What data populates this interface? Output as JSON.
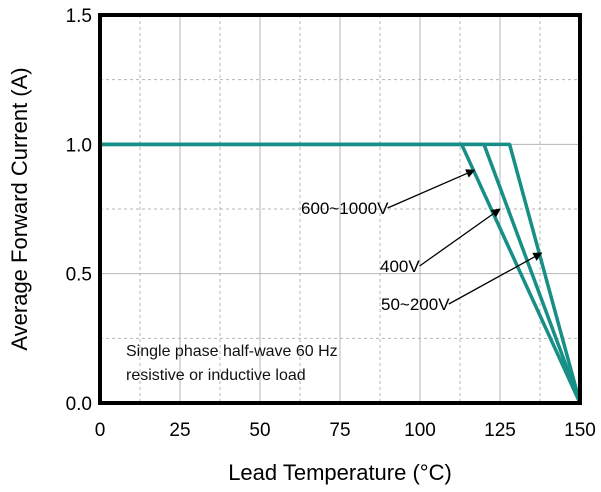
{
  "chart_data": {
    "type": "line",
    "xlabel": "Lead Temperature (°C)",
    "ylabel": "Average Forward Current  (A)",
    "xlim": [
      0,
      150
    ],
    "ylim": [
      0,
      1.5
    ],
    "x_ticks": [
      0,
      25,
      50,
      75,
      100,
      125,
      150
    ],
    "y_ticks": [
      0.0,
      0.5,
      1.0,
      1.5
    ],
    "x_tick_labels": [
      "0",
      "25",
      "50",
      "75",
      "100",
      "125",
      "150"
    ],
    "y_tick_labels": [
      "0.0",
      "0.5",
      "1.0",
      "1.5"
    ],
    "grid": true,
    "line_color": "#178f86",
    "series": [
      {
        "name": "600~1000V",
        "x": [
          0,
          113,
          150
        ],
        "y": [
          1.0,
          1.0,
          0.0
        ]
      },
      {
        "name": "400V",
        "x": [
          0,
          120,
          150
        ],
        "y": [
          1.0,
          1.0,
          0.0
        ]
      },
      {
        "name": "50~200V",
        "x": [
          0,
          128,
          150
        ],
        "y": [
          1.0,
          1.0,
          0.0
        ]
      }
    ],
    "annotations": [
      {
        "text": "600~1000V",
        "series": 0,
        "target": [
          117,
          0.9
        ]
      },
      {
        "text": "400V",
        "series": 1,
        "target": [
          125,
          0.75
        ]
      },
      {
        "text": "50~200V",
        "series": 2,
        "target": [
          138,
          0.58
        ]
      }
    ],
    "note_lines": [
      "Single phase half-wave 60 Hz",
      "resistive or inductive load"
    ]
  }
}
